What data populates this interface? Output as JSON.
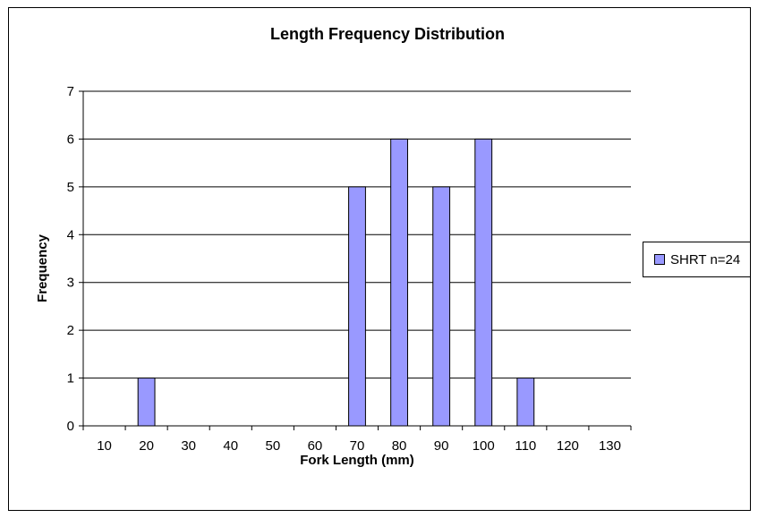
{
  "chart_data": {
    "type": "bar",
    "title": "Length Frequency Distribution",
    "xlabel": "Fork Length (mm)",
    "ylabel": "Frequency",
    "categories": [
      "10",
      "20",
      "30",
      "40",
      "50",
      "60",
      "70",
      "80",
      "90",
      "100",
      "110",
      "120",
      "130"
    ],
    "series": [
      {
        "name": "SHRT n=24",
        "values": [
          0,
          1,
          0,
          0,
          0,
          0,
          5,
          6,
          5,
          6,
          1,
          0,
          0
        ]
      }
    ],
    "ylim": [
      0,
      7
    ],
    "yticks": [
      "0",
      "1",
      "2",
      "3",
      "4",
      "5",
      "6",
      "7"
    ],
    "grid": true,
    "legend": "right",
    "colors": {
      "bar": "#9999ff",
      "outline": "#000000"
    }
  }
}
